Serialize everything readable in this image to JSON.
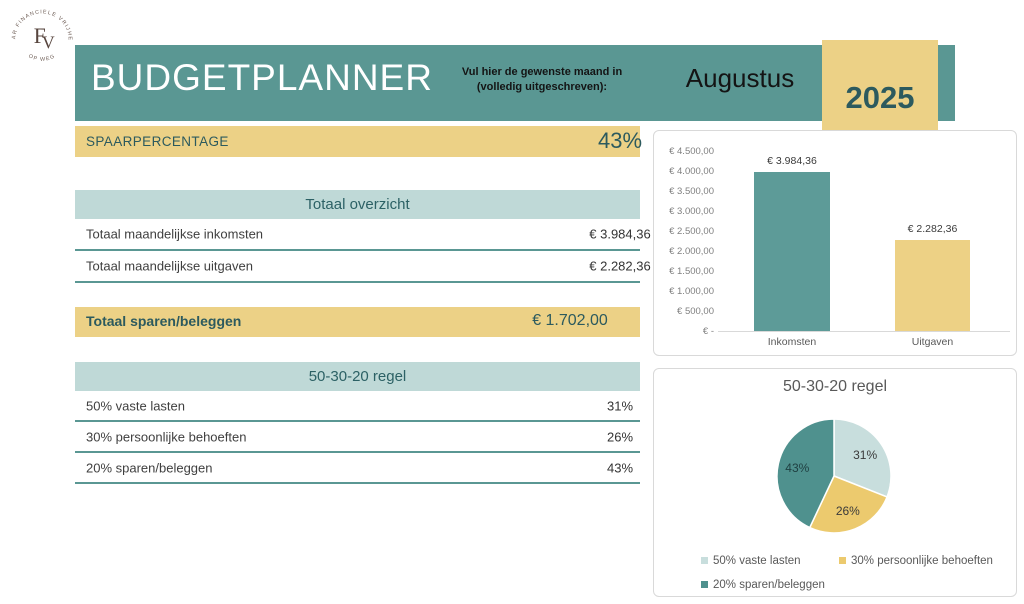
{
  "logo": {
    "monogram_f": "F",
    "monogram_v": "V",
    "arc_top": "NAAR FINANCIELE VRIJHEID",
    "arc_bottom": "OP WEG"
  },
  "header": {
    "title": "BUDGETPLANNER",
    "month_prompt_line1": "Vul hier de gewenste maand in",
    "month_prompt_line2": "(volledig uitgeschreven):",
    "month_value": "Augustus",
    "year": "2025"
  },
  "savings_rate": {
    "label": "SPAARPERCENTAGE",
    "value": "43%"
  },
  "overview_table": {
    "header": "Totaal overzicht",
    "rows": [
      {
        "label": "Totaal maandelijkse inkomsten",
        "value": "€ 3.984,36"
      },
      {
        "label": "Totaal maandelijkse uitgaven",
        "value": "€ 2.282,36"
      }
    ]
  },
  "savings_total": {
    "label": "Totaal sparen/beleggen",
    "value": "€ 1.702,00"
  },
  "rule_table": {
    "header": "50-30-20 regel",
    "rows": [
      {
        "label": "50% vaste lasten",
        "value": "31%"
      },
      {
        "label": "30% persoonlijke behoeften",
        "value": "26%"
      },
      {
        "label": "20% sparen/beleggen",
        "value": "43%"
      }
    ]
  },
  "colors": {
    "teal": "#5a9793",
    "teal-dark": "#2c5a5e",
    "yellow": "#ecd186",
    "light-teal": "#bfd9d7",
    "bar-teal": "#5d9b98",
    "bar-yellow": "#edd185",
    "pie-light": "#c8dedd",
    "pie-yellow": "#ecca6e",
    "pie-dark": "#4f918e",
    "divider": "#5a9793",
    "label-gray": "#3f3f3f",
    "axis-gray": "#7f7f7f",
    "chart-gray": "#595959",
    "panel-border": "#d9d9d9"
  },
  "chart_data": [
    {
      "type": "bar",
      "categories": [
        "Inkomsten",
        "Uitgaven"
      ],
      "values": [
        3984.36,
        2282.36
      ],
      "data_labels": [
        "€ 3.984,36",
        "€ 2.282,36"
      ],
      "bar_colors": [
        "#5d9b98",
        "#edd185"
      ],
      "title": "",
      "xlabel": "",
      "ylabel": "",
      "ylim": [
        0,
        4500
      ],
      "ytick_labels": [
        "€ 4.500,00",
        "€ 4.000,00",
        "€ 3.500,00",
        "€ 3.000,00",
        "€ 2.500,00",
        "€ 2.000,00",
        "€ 1.500,00",
        "€ 1.000,00",
        "€ 500,00",
        "€ -"
      ],
      "grid": false,
      "legend": false
    },
    {
      "type": "pie",
      "title": "50-30-20 regel",
      "labels": [
        "50% vaste lasten",
        "30% persoonlijke behoeften",
        "20% sparen/beleggen"
      ],
      "values": [
        31,
        26,
        43
      ],
      "slice_labels": [
        "31%",
        "26%",
        "43%"
      ],
      "colors": [
        "#c8dedd",
        "#ecca6e",
        "#4f918e"
      ],
      "legend_position": "bottom"
    }
  ]
}
